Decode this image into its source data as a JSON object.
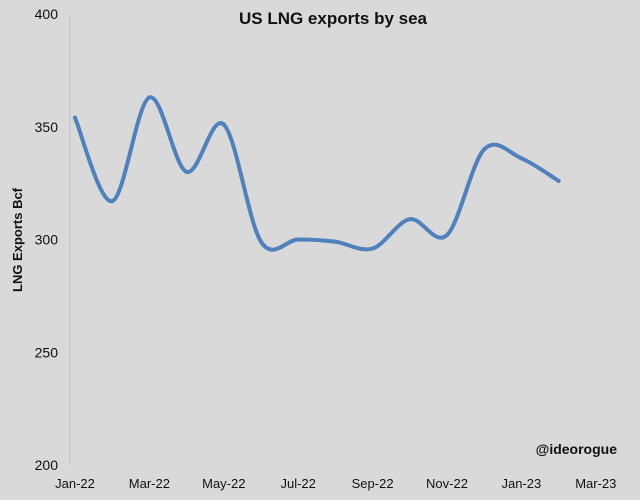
{
  "chart_data": {
    "type": "line",
    "title": "US LNG exports by sea",
    "ylabel": "LNG Exports Bcf",
    "xlabel": "",
    "ylim": [
      200,
      400
    ],
    "yticks": [
      200,
      250,
      300,
      350,
      400
    ],
    "xticks": [
      "Jan-22",
      "Mar-22",
      "May-22",
      "Jul-22",
      "Sep-22",
      "Nov-22",
      "Jan-23",
      "Mar-23"
    ],
    "grid": false,
    "line_color": "#4f81bd",
    "x": [
      "Jan-22",
      "Feb-22",
      "Mar-22",
      "Apr-22",
      "May-22",
      "Jun-22",
      "Jul-22",
      "Aug-22",
      "Sep-22",
      "Oct-22",
      "Nov-22",
      "Dec-22",
      "Jan-23",
      "Feb-23"
    ],
    "series": [
      {
        "values": [
          354,
          317,
          363,
          330,
          351,
          299,
          300,
          299,
          296,
          309,
          302,
          340,
          336,
          326
        ]
      }
    ],
    "watermark": "@ideorogue"
  }
}
